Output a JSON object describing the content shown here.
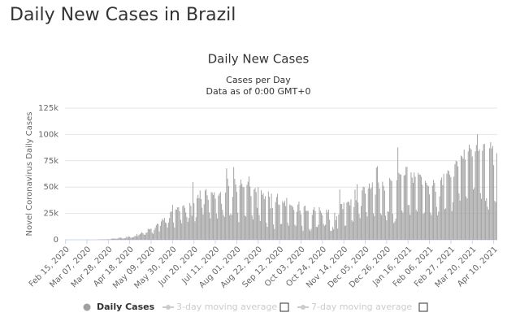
{
  "page_title": "Daily New Cases in Brazil",
  "chart_data": {
    "type": "bar",
    "title": "Daily New Cases",
    "subtitle": [
      "Cases per Day",
      "Data as of 0:00 GMT+0"
    ],
    "y_label": "Novel Coronavirus Daily Cases",
    "ylim": [
      0,
      125000
    ],
    "yticks": [
      0,
      {
        "value": 25000,
        "label": "25k"
      },
      {
        "value": 50000,
        "label": "50k"
      },
      {
        "value": 75000,
        "label": "75k"
      },
      {
        "value": 100000,
        "label": "100k"
      },
      {
        "value": 125000,
        "label": "125k"
      }
    ],
    "grid": true,
    "categories": [
      "Feb 15, 2020",
      null,
      null,
      null,
      null,
      null,
      null,
      null,
      null,
      null,
      null,
      null,
      null,
      null,
      null,
      null,
      null,
      null,
      null,
      null,
      null,
      "Mar 07, 2020",
      null,
      null,
      null,
      null,
      null,
      null,
      null,
      null,
      null,
      null,
      null,
      null,
      null,
      null,
      null,
      null,
      null,
      null,
      null,
      null,
      "Mar 28, 2020",
      null,
      null,
      null,
      null,
      null,
      null,
      null,
      null,
      null,
      null,
      null,
      null,
      null,
      null,
      null,
      null,
      null,
      null,
      null,
      null,
      "Apr 18, 2020",
      null,
      null,
      null,
      null,
      null,
      null,
      null,
      null,
      null,
      null,
      null,
      null,
      null,
      null,
      null,
      null,
      null,
      null,
      null,
      null,
      "May 09, 2020",
      null,
      null,
      null,
      null,
      null,
      null,
      null,
      null,
      null,
      null,
      null,
      null,
      null,
      null,
      null,
      null,
      null,
      null,
      null,
      null,
      "May 30, 2020",
      null,
      null,
      null,
      null,
      null,
      null,
      null,
      null,
      null,
      null,
      null,
      null,
      null,
      null,
      null,
      null,
      null,
      null,
      null,
      null,
      "Jun 20, 2020",
      null,
      null,
      null,
      null,
      null,
      null,
      null,
      null,
      null,
      null,
      null,
      null,
      null,
      null,
      null,
      null,
      null,
      null,
      null,
      null,
      "Jul 11, 2020",
      null,
      null,
      null,
      null,
      null,
      null,
      null,
      null,
      null,
      null,
      null,
      null,
      null,
      null,
      null,
      null,
      null,
      null,
      null,
      null,
      "Aug 01, 2020",
      null,
      null,
      null,
      null,
      null,
      null,
      null,
      null,
      null,
      null,
      null,
      null,
      null,
      null,
      null,
      null,
      null,
      null,
      null,
      null,
      "Aug 22, 2020",
      null,
      null,
      null,
      null,
      null,
      null,
      null,
      null,
      null,
      null,
      null,
      null,
      null,
      null,
      null,
      null,
      null,
      null,
      null,
      null,
      "Sep 12, 2020",
      null,
      null,
      null,
      null,
      null,
      null,
      null,
      null,
      null,
      null,
      null,
      null,
      null,
      null,
      null,
      null,
      null,
      null,
      null,
      null,
      "Oct 03, 2020",
      null,
      null,
      null,
      null,
      null,
      null,
      null,
      null,
      null,
      null,
      null,
      null,
      null,
      null,
      null,
      null,
      null,
      null,
      null,
      null,
      "Oct 24, 2020",
      null,
      null,
      null,
      null,
      null,
      null,
      null,
      null,
      null,
      null,
      null,
      null,
      null,
      null,
      null,
      null,
      null,
      null,
      null,
      null,
      "Nov 14, 2020",
      null,
      null,
      null,
      null,
      null,
      null,
      null,
      null,
      null,
      null,
      null,
      null,
      null,
      null,
      null,
      null,
      null,
      null,
      null,
      null,
      "Dec 05, 2020",
      null,
      null,
      null,
      null,
      null,
      null,
      null,
      null,
      null,
      null,
      null,
      null,
      null,
      null,
      null,
      null,
      null,
      null,
      null,
      null,
      "Dec 26, 2020",
      null,
      null,
      null,
      null,
      null,
      null,
      null,
      null,
      null,
      null,
      null,
      null,
      null,
      null,
      null,
      null,
      null,
      null,
      null,
      null,
      "Jan 16, 2021",
      null,
      null,
      null,
      null,
      null,
      null,
      null,
      null,
      null,
      null,
      null,
      null,
      null,
      null,
      null,
      null,
      null,
      null,
      null,
      null,
      "Feb 06, 2021",
      null,
      null,
      null,
      null,
      null,
      null,
      null,
      null,
      null,
      null,
      null,
      null,
      null,
      null,
      null,
      null,
      null,
      null,
      null,
      null,
      "Feb 27, 2021",
      null,
      null,
      null,
      null,
      null,
      null,
      null,
      null,
      null,
      null,
      null,
      null,
      null,
      null,
      null,
      null,
      null,
      null,
      null,
      null,
      "Mar 20, 2021",
      null,
      null,
      null,
      null,
      null,
      null,
      null,
      null,
      null,
      null,
      null,
      null,
      null,
      null,
      null,
      null,
      null,
      null,
      null,
      null,
      "Apr 10, 2021",
      null,
      null,
      null
    ],
    "series": [
      {
        "name": "Daily Cases",
        "color": "#a0a0a0",
        "values": [
          0,
          0,
          0,
          0,
          0,
          0,
          0,
          0,
          0,
          0,
          0,
          1,
          0,
          0,
          1,
          0,
          0,
          0,
          0,
          5,
          5,
          6,
          0,
          5,
          9,
          18,
          25,
          21,
          23,
          79,
          34,
          57,
          137,
          193,
          283,
          224,
          418,
          345,
          310,
          232,
          482,
          502,
          487,
          352,
          323,
          1138,
          1119,
          1074,
          1146,
          1222,
          852,
          926,
          1661,
          2210,
          1930,
          1781,
          1089,
          1442,
          1261,
          1832,
          3058,
          2105,
          3257,
          2917,
          1996,
          2089,
          2336,
          2678,
          3735,
          3503,
          5514,
          3379,
          4613,
          5385,
          6276,
          7218,
          6209,
          4970,
          4588,
          6633,
          6935,
          10503,
          9888,
          10222,
          10611,
          6760,
          5632,
          9258,
          11385,
          13944,
          15305,
          14919,
          7938,
          13140,
          17408,
          19951,
          18508,
          20803,
          16508,
          15813,
          11687,
          16324,
          20599,
          26417,
          26928,
          33274,
          16409,
          11598,
          28936,
          28633,
          30925,
          30830,
          27075,
          18912,
          15654,
          32091,
          32913,
          30412,
          25982,
          21704,
          17110,
          20647,
          34918,
          32188,
          22765,
          54771,
          34666,
          17459,
          21432,
          39436,
          42725,
          39483,
          46860,
          38693,
          30476,
          24052,
          33846,
          46712,
          48105,
          42223,
          37923,
          26051,
          20229,
          45305,
          44571,
          42619,
          45048,
          39023,
          24831,
          20286,
          41857,
          43829,
          45403,
          34177,
          28532,
          23529,
          21749,
          44887,
          67860,
          58080,
          51147,
          23284,
          24578,
          23467,
          40816,
          69074,
          57837,
          52383,
          45392,
          25800,
          16641,
          51603,
          57152,
          53139,
          50230,
          49970,
          23010,
          22048,
          52160,
          55155,
          60091,
          50644,
          41576,
          23101,
          19373,
          47784,
          49298,
          45323,
          30355,
          50032,
          23421,
          17817,
          47134,
          42659,
          44235,
          38637,
          41350,
          16158,
          12386,
          45961,
          40871,
          29796,
          43773,
          30168,
          14521,
          10273,
          35816,
          40557,
          43718,
          33523,
          33057,
          14768,
          15155,
          36653,
          34918,
          36820,
          31911,
          39797,
          16389,
          13439,
          33536,
          32817,
          32445,
          31084,
          28378,
          14318,
          13155,
          26621,
          33413,
          36303,
          27750,
          24062,
          13280,
          8456,
          31553,
          32461,
          27444,
          27651,
          27444,
          10220,
          8426,
          10273,
          23659,
          28523,
          30914,
          27235,
          12345,
          12044,
          14194,
          31028,
          27682,
          25675,
          23373,
          15181,
          13312,
          14364,
          28629,
          26106,
          28650,
          18947,
          8501,
          8426,
          12186,
          10200,
          25691,
          18641,
          22380,
          10554,
          23976,
          47724,
          33922,
          33970,
          29070,
          35294,
          13371,
          13566,
          35294,
          36315,
          35918,
          32622,
          38307,
          18615,
          17246,
          31100,
          47724,
          37614,
          52800,
          35294,
          24468,
          20548,
          32032,
          46884,
          50434,
          49863,
          43900,
          26363,
          22282,
          48895,
          53453,
          48220,
          49525,
          54428,
          25193,
          22567,
          42889,
          68437,
          69826,
          54420,
          48541,
          25019,
          23446,
          55202,
          51183,
          46696,
          22967,
          18479,
          27076,
          26526,
          58718,
          56773,
          55649,
          24605,
          15827,
          17341,
          20006,
          56648,
          87843,
          63504,
          62290,
          61804,
          27795,
          25822,
          60899,
          61563,
          69198,
          69198,
          33040,
          33040,
          23671,
          64025,
          59119,
          54096,
          63846,
          59826,
          28323,
          26816,
          63520,
          61963,
          61811,
          59826,
          52248,
          24591,
          25832,
          56002,
          54096,
          51879,
          50872,
          43119,
          25898,
          23439,
          51486,
          56873,
          54096,
          45601,
          31288,
          23200,
          26822,
          41229,
          56766,
          59119,
          51879,
          62715,
          29026,
          29863,
          62715,
          65998,
          65169,
          61602,
          59304,
          27294,
          35742,
          59925,
          71704,
          75102,
          74376,
          69609,
          44121,
          37123,
          79876,
          79069,
          77061,
          85663,
          76178,
          41112,
          39223,
          83926,
          90303,
          86982,
          85663,
          79069,
          47774,
          49293,
          83926,
          89992,
          100158,
          84245,
          85948,
          44326,
          38927,
          84494,
          90638,
          91097,
          37017,
          39360,
          31359,
          28645,
          86979,
          92625,
          86652,
          89070,
          70863,
          37017,
          35785,
          82186
        ]
      }
    ],
    "inactive_series": [
      "3-day moving average",
      "7-day moving average"
    ]
  }
}
